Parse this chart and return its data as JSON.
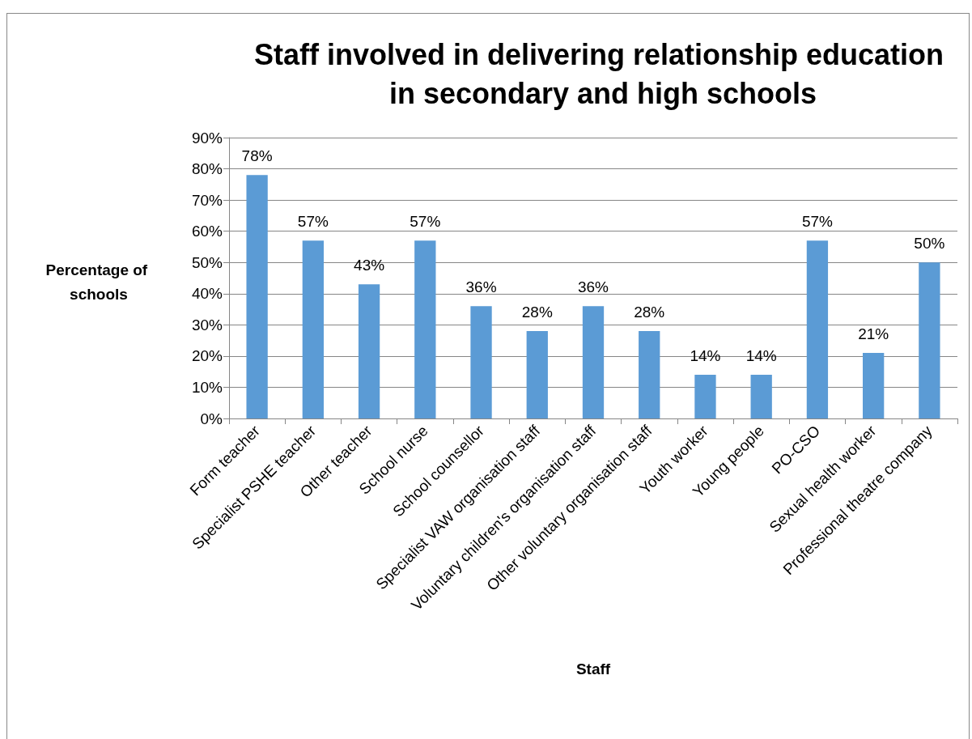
{
  "chart_data": {
    "type": "bar",
    "title": "Staff involved in delivering relationship education in secondary and high schools",
    "xlabel": "Staff",
    "ylabel": "Percentage of schools",
    "categories": [
      "Form teacher",
      "Specialist PSHE teacher",
      "Other teacher",
      "School nurse",
      "School counsellor",
      "Specialist VAW organisation staff",
      "Voluntary children's organisation staff",
      "Other voluntary organisation staff",
      "Youth worker",
      "Young people",
      "PO-CSO",
      "Sexual health worker",
      "Professional theatre company"
    ],
    "values": [
      78,
      57,
      43,
      57,
      36,
      28,
      36,
      28,
      14,
      14,
      57,
      21,
      50
    ],
    "value_labels": [
      "78%",
      "57%",
      "43%",
      "57%",
      "36%",
      "28%",
      "36%",
      "28%",
      "14%",
      "14%",
      "57%",
      "21%",
      "50%"
    ],
    "color": "#5b9bd5",
    "ylim": [
      0,
      90
    ],
    "yticks": [
      {
        "value": 0,
        "label": "0%"
      },
      {
        "value": 10,
        "label": "10%"
      },
      {
        "value": 20,
        "label": "20%"
      },
      {
        "value": 30,
        "label": "30%"
      },
      {
        "value": 40,
        "label": "40%"
      },
      {
        "value": 50,
        "label": "50%"
      },
      {
        "value": 60,
        "label": "60%"
      },
      {
        "value": 70,
        "label": "70%"
      },
      {
        "value": 80,
        "label": "80%"
      },
      {
        "value": 90,
        "label": "90%"
      }
    ],
    "grid": "y"
  }
}
